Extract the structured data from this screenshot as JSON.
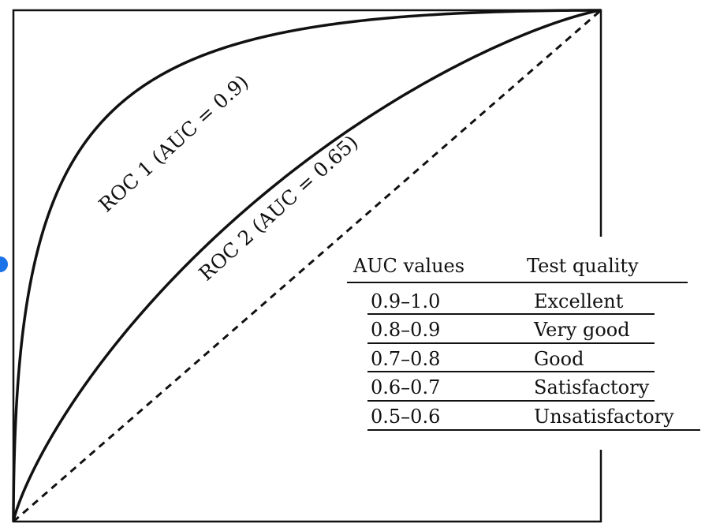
{
  "chart_data": {
    "type": "line",
    "xlim": [
      0,
      1
    ],
    "ylim": [
      0,
      1
    ],
    "grid": false,
    "series": [
      {
        "name": "ROC 1 (AUC = 0.9)",
        "auc": 0.9,
        "line": "solid"
      },
      {
        "name": "ROC 2 (AUC = 0.65)",
        "auc": 0.65,
        "line": "solid"
      },
      {
        "name": "",
        "line": "dashed",
        "points": [
          [
            0,
            0
          ],
          [
            1,
            1
          ]
        ]
      }
    ],
    "table": {
      "headers": [
        "AUC values",
        "Test quality"
      ],
      "rows": [
        [
          "0.9–1.0",
          "Excellent"
        ],
        [
          "0.8–0.9",
          "Very good"
        ],
        [
          "0.7–0.8",
          "Good"
        ],
        [
          "0.6–0.7",
          "Satisfactory"
        ],
        [
          "0.5–0.6",
          "Unsatisfactory"
        ]
      ]
    }
  }
}
